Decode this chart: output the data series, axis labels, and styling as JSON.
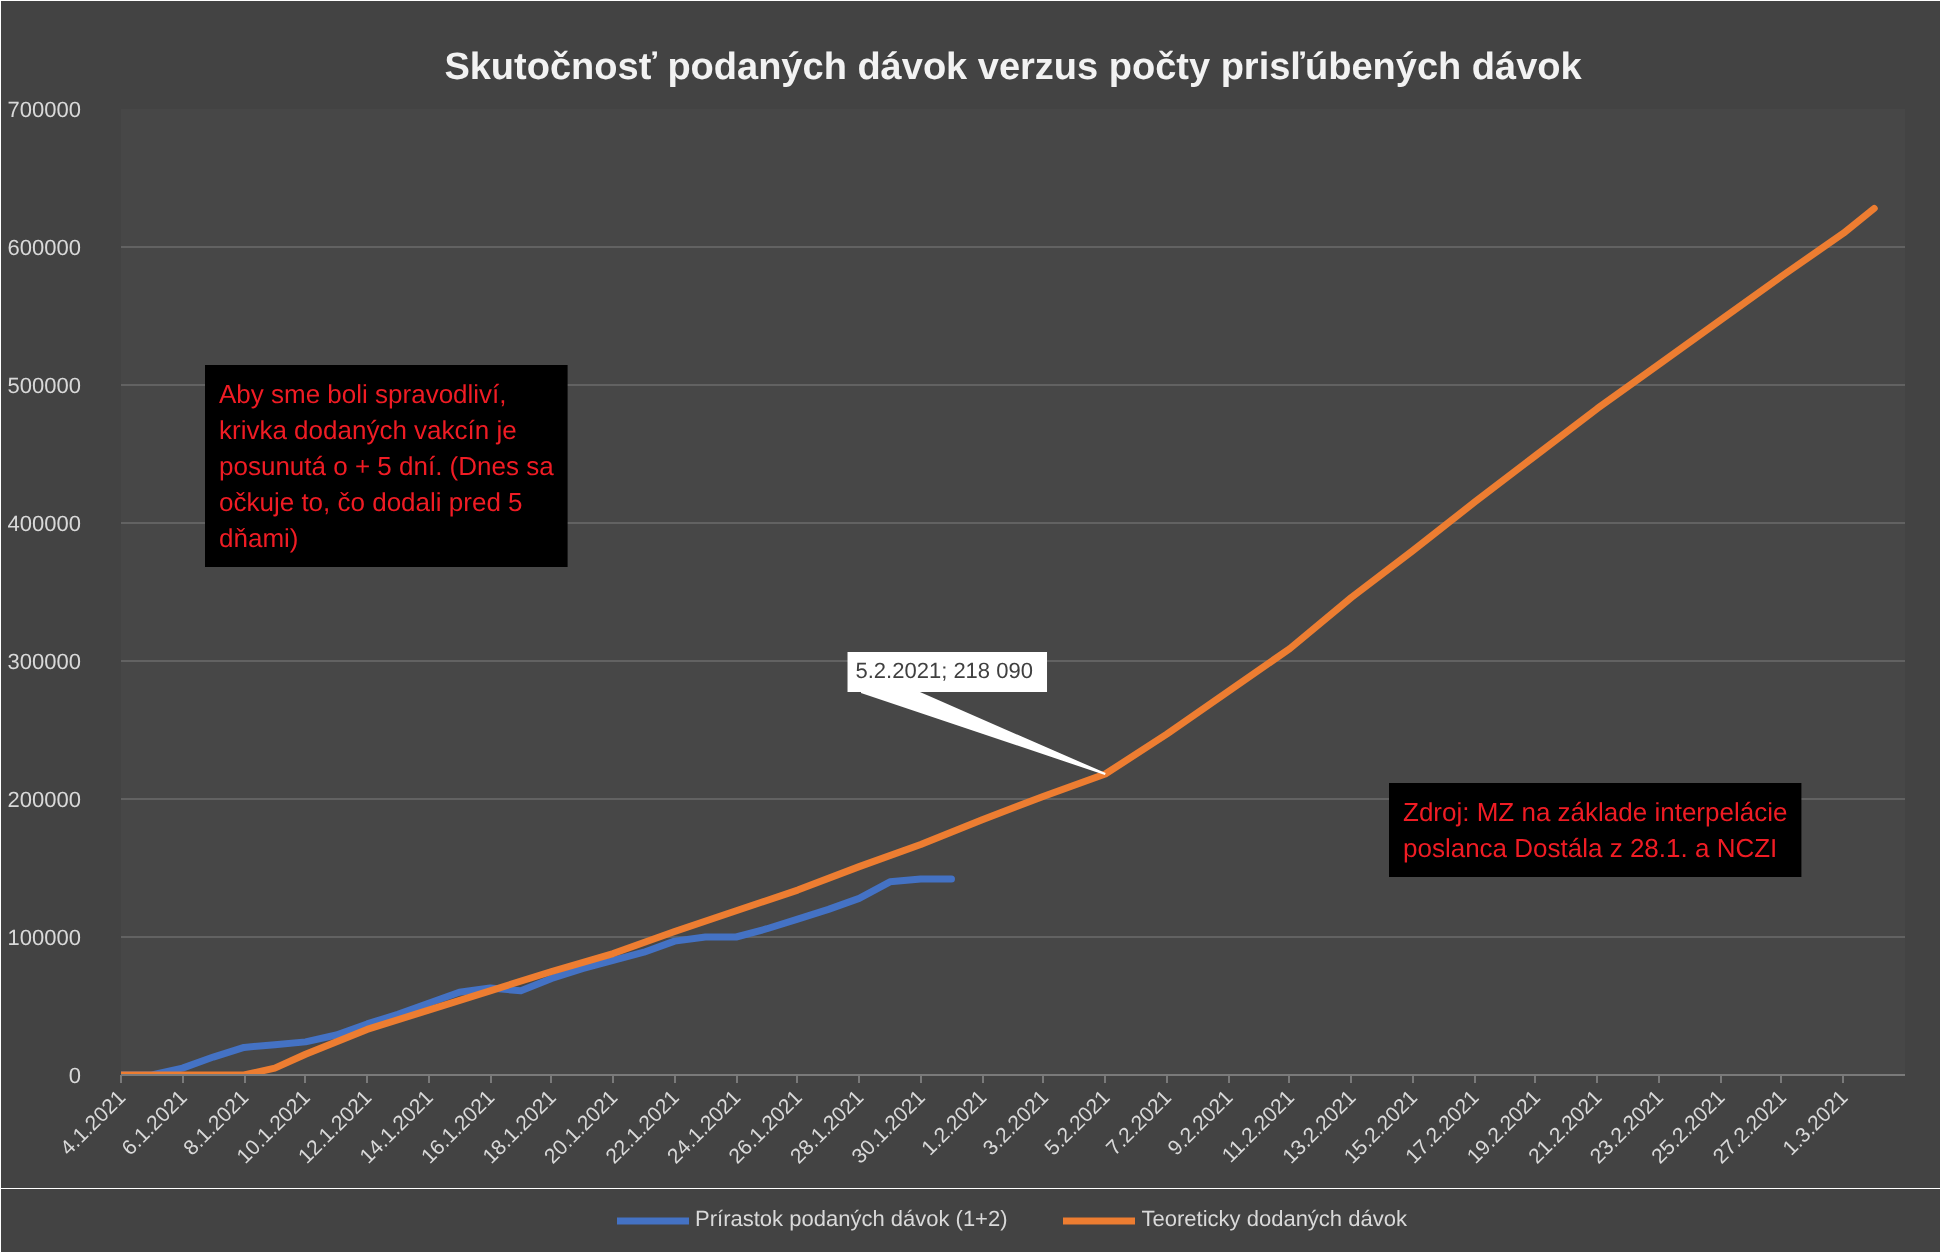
{
  "chart_data": {
    "type": "line",
    "title": "Skutočnosť podaných dávok verzus počty prisľúbených dávok",
    "series": [
      {
        "name": "Prírastok podaných dávok (1+2)",
        "color": "#4472c4",
        "x": [
          "2021-01-04",
          "2021-01-05",
          "2021-01-06",
          "2021-01-07",
          "2021-01-08",
          "2021-01-09",
          "2021-01-10",
          "2021-01-11",
          "2021-01-12",
          "2021-01-13",
          "2021-01-14",
          "2021-01-15",
          "2021-01-16",
          "2021-01-17",
          "2021-01-18",
          "2021-01-19",
          "2021-01-20",
          "2021-01-21",
          "2021-01-22",
          "2021-01-23",
          "2021-01-24",
          "2021-01-25",
          "2021-01-26",
          "2021-01-27",
          "2021-01-28",
          "2021-01-29",
          "2021-01-30",
          "2021-01-31"
        ],
        "values": [
          0,
          0,
          5000,
          13000,
          20000,
          22000,
          24000,
          29000,
          37000,
          44000,
          52000,
          60000,
          63000,
          61000,
          70000,
          77000,
          83000,
          89000,
          97000,
          100000,
          100000,
          106000,
          113000,
          120000,
          128000,
          140000,
          142000,
          142000
        ]
      },
      {
        "name": "Teoreticky dodaných dávok",
        "color": "#ed7d31",
        "x": [
          "2021-01-04",
          "2021-01-08",
          "2021-01-09",
          "2021-01-10",
          "2021-01-12",
          "2021-01-14",
          "2021-01-16",
          "2021-01-18",
          "2021-01-20",
          "2021-01-22",
          "2021-01-24",
          "2021-01-26",
          "2021-01-28",
          "2021-01-30",
          "2021-02-01",
          "2021-02-03",
          "2021-02-05",
          "2021-02-07",
          "2021-02-09",
          "2021-02-11",
          "2021-02-13",
          "2021-02-15",
          "2021-02-17",
          "2021-02-19",
          "2021-02-21",
          "2021-02-23",
          "2021-02-25",
          "2021-02-27",
          "2021-03-01",
          "2021-03-02"
        ],
        "values": [
          0,
          0,
          5000,
          15000,
          33000,
          47000,
          61000,
          75000,
          88000,
          104000,
          119000,
          134000,
          151000,
          167000,
          185000,
          202000,
          218090,
          247000,
          278000,
          309000,
          346000,
          380000,
          415000,
          449000,
          483000,
          515000,
          547000,
          579000,
          610000,
          628000
        ]
      }
    ],
    "xlim": [
      "2021-01-04",
      "2021-03-03"
    ],
    "xticks": [
      {
        "value": "2021-01-04",
        "label": "4.1.2021"
      },
      {
        "value": "2021-01-06",
        "label": "6.1.2021"
      },
      {
        "value": "2021-01-08",
        "label": "8.1.2021"
      },
      {
        "value": "2021-01-10",
        "label": "10.1.2021"
      },
      {
        "value": "2021-01-12",
        "label": "12.1.2021"
      },
      {
        "value": "2021-01-14",
        "label": "14.1.2021"
      },
      {
        "value": "2021-01-16",
        "label": "16.1.2021"
      },
      {
        "value": "2021-01-18",
        "label": "18.1.2021"
      },
      {
        "value": "2021-01-20",
        "label": "20.1.2021"
      },
      {
        "value": "2021-01-22",
        "label": "22.1.2021"
      },
      {
        "value": "2021-01-24",
        "label": "24.1.2021"
      },
      {
        "value": "2021-01-26",
        "label": "26.1.2021"
      },
      {
        "value": "2021-01-28",
        "label": "28.1.2021"
      },
      {
        "value": "2021-01-30",
        "label": "30.1.2021"
      },
      {
        "value": "2021-02-01",
        "label": "1.2.2021"
      },
      {
        "value": "2021-02-03",
        "label": "3.2.2021"
      },
      {
        "value": "2021-02-05",
        "label": "5.2.2021"
      },
      {
        "value": "2021-02-07",
        "label": "7.2.2021"
      },
      {
        "value": "2021-02-09",
        "label": "9.2.2021"
      },
      {
        "value": "2021-02-11",
        "label": "11.2.2021"
      },
      {
        "value": "2021-02-13",
        "label": "13.2.2021"
      },
      {
        "value": "2021-02-15",
        "label": "15.2.2021"
      },
      {
        "value": "2021-02-17",
        "label": "17.2.2021"
      },
      {
        "value": "2021-02-19",
        "label": "19.2.2021"
      },
      {
        "value": "2021-02-21",
        "label": "21.2.2021"
      },
      {
        "value": "2021-02-23",
        "label": "23.2.2021"
      },
      {
        "value": "2021-02-25",
        "label": "25.2.2021"
      },
      {
        "value": "2021-02-27",
        "label": "27.2.2021"
      },
      {
        "value": "2021-03-01",
        "label": "1.3.2021"
      }
    ],
    "ylim": [
      0,
      700000
    ],
    "yticks": [
      0,
      100000,
      200000,
      300000,
      400000,
      500000,
      600000,
      700000
    ],
    "grid": "y",
    "legend": "bottom",
    "line_style": "solid",
    "annotations": [
      "Aby sme boli spravodliví, krivka dodaných vakcín je posunutá o + 5 dní. (Dnes sa očkuje to, čo dodali pred 5 dňami)",
      "Zdroj: MZ na základe interpelácie poslanca Dostála z 28.1. a NCZI",
      {
        "text": "5.2.2021;  218 090",
        "x": "2021-02-05",
        "y": 218090
      }
    ]
  }
}
